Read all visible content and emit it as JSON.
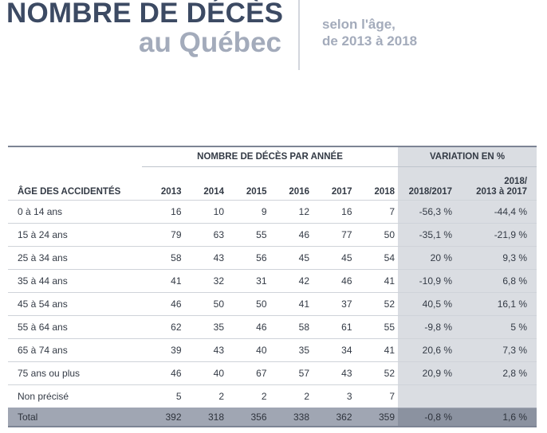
{
  "header": {
    "title_line1": "NOMBRE DE DÉCÈS",
    "title_line2": "au Québec",
    "subtitle_line1": "selon l'âge,",
    "subtitle_line2": "de 2013 à 2018"
  },
  "table": {
    "group_header_years": "NOMBRE DE DÉCÈS PAR ANNÉE",
    "group_header_variation": "VARIATION EN %",
    "age_header": "ÂGE DES ACCIDENTÉS",
    "years": [
      "2013",
      "2014",
      "2015",
      "2016",
      "2017",
      "2018"
    ],
    "variation_headers": [
      "2018/2017",
      "2018/\n2013 à 2017"
    ],
    "variation_header2_line1": "2018/",
    "variation_header2_line2": "2013 à 2017",
    "rows": [
      {
        "age": "0 à 14 ans",
        "values": [
          "16",
          "10",
          "9",
          "12",
          "16",
          "7"
        ],
        "var1": "-56,3 %",
        "var2": "-44,4 %"
      },
      {
        "age": "15 à 24 ans",
        "values": [
          "79",
          "63",
          "55",
          "46",
          "77",
          "50"
        ],
        "var1": "-35,1 %",
        "var2": "-21,9 %"
      },
      {
        "age": "25 à 34 ans",
        "values": [
          "58",
          "43",
          "56",
          "45",
          "45",
          "54"
        ],
        "var1": "20 %",
        "var2": "9,3 %"
      },
      {
        "age": "35 à 44 ans",
        "values": [
          "41",
          "32",
          "31",
          "42",
          "46",
          "41"
        ],
        "var1": "-10,9 %",
        "var2": "6,8 %"
      },
      {
        "age": "45 à 54 ans",
        "values": [
          "46",
          "50",
          "50",
          "41",
          "37",
          "52"
        ],
        "var1": "40,5 %",
        "var2": "16,1 %"
      },
      {
        "age": "55 à 64 ans",
        "values": [
          "62",
          "35",
          "46",
          "58",
          "61",
          "55"
        ],
        "var1": "-9,8 %",
        "var2": "5 %"
      },
      {
        "age": "65 à 74 ans",
        "values": [
          "39",
          "43",
          "40",
          "35",
          "34",
          "41"
        ],
        "var1": "20,6 %",
        "var2": "7,3 %"
      },
      {
        "age": "75 ans ou plus",
        "values": [
          "46",
          "40",
          "67",
          "57",
          "43",
          "52"
        ],
        "var1": "20,9 %",
        "var2": "2,8 %"
      },
      {
        "age": "Non précisé",
        "values": [
          "5",
          "2",
          "2",
          "2",
          "3",
          "7"
        ],
        "var1": "",
        "var2": ""
      }
    ],
    "total": {
      "age": "Total",
      "values": [
        "392",
        "318",
        "356",
        "338",
        "362",
        "359"
      ],
      "var1": "-0,8 %",
      "var2": "1,6 %"
    }
  }
}
